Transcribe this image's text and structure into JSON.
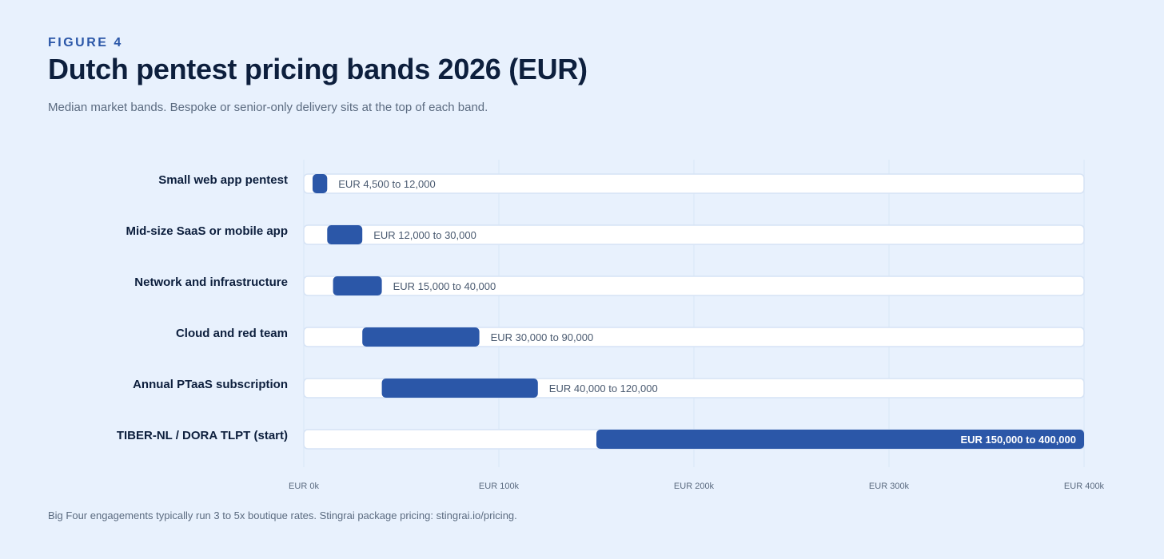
{
  "header": {
    "eyebrow": "FIGURE 4",
    "title": "Dutch pentest pricing bands 2026 (EUR)",
    "subtitle": "Median market bands. Bespoke or senior-only delivery sits at the top of each band."
  },
  "footnote": "Big Four engagements typically run 3 to 5x boutique rates. Stingrai package pricing: stingrai.io/pricing.",
  "colors": {
    "background": "#e8f1fd",
    "bar": "#2b57a8",
    "track": "#ffffff",
    "track_border": "#d6e3f5",
    "grid": "#d9e6f7"
  },
  "chart_data": {
    "type": "bar",
    "orientation": "horizontal-range",
    "title": "Dutch pentest pricing bands 2026 (EUR)",
    "xlim": [
      0,
      400000
    ],
    "x_ticks": [
      0,
      100000,
      200000,
      300000,
      400000
    ],
    "x_tick_labels": [
      "EUR 0k",
      "EUR 100k",
      "EUR 200k",
      "EUR 300k",
      "EUR 400k"
    ],
    "grid": true,
    "categories": [
      "Small web app pentest",
      "Mid-size SaaS or mobile app",
      "Network and infrastructure",
      "Cloud and red team",
      "Annual PTaaS subscription",
      "TIBER-NL / DORA TLPT (start)"
    ],
    "ranges": [
      {
        "low": 4500,
        "high": 12000,
        "label": "EUR 4,500 to 12,000"
      },
      {
        "low": 12000,
        "high": 30000,
        "label": "EUR 12,000 to 30,000"
      },
      {
        "low": 15000,
        "high": 40000,
        "label": "EUR 15,000 to 40,000"
      },
      {
        "low": 30000,
        "high": 90000,
        "label": "EUR 30,000 to 90,000"
      },
      {
        "low": 40000,
        "high": 120000,
        "label": "EUR 40,000 to 120,000"
      },
      {
        "low": 150000,
        "high": 400000,
        "label": "EUR 150,000 to 400,000"
      }
    ]
  }
}
